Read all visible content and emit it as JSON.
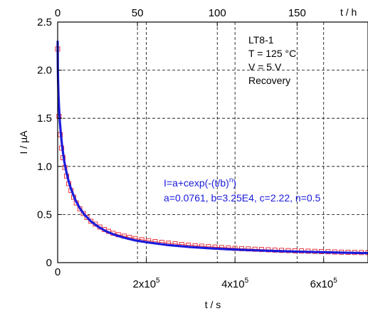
{
  "chart_data": {
    "type": "scatter",
    "xlabel": "t / s",
    "ylabel": "I / µA",
    "top_xlabel": "t / h",
    "xlim": [
      0,
      700000
    ],
    "ylim": [
      0,
      2.5
    ],
    "top_xlim_hours": [
      0,
      194.44
    ],
    "grid": true,
    "x_ticks": [
      {
        "value": 0,
        "label": "0"
      },
      {
        "value": 200000,
        "label": "2x10",
        "sup": "5"
      },
      {
        "value": 400000,
        "label": "4x10",
        "sup": "5"
      },
      {
        "value": 600000,
        "label": "6x10",
        "sup": "5"
      }
    ],
    "y_ticks": [
      {
        "value": 0,
        "label": "0"
      },
      {
        "value": 0.5,
        "label": "0.5"
      },
      {
        "value": 1.0,
        "label": "1.0"
      },
      {
        "value": 1.5,
        "label": "1.5"
      },
      {
        "value": 2.0,
        "label": "2.0"
      },
      {
        "value": 2.5,
        "label": "2.5"
      }
    ],
    "top_ticks": [
      {
        "value": 0,
        "label": "0"
      },
      {
        "value": 50,
        "label": "50"
      },
      {
        "value": 100,
        "label": "100"
      },
      {
        "value": 150,
        "label": "150"
      }
    ],
    "annotation_lines": [
      "LT8-1",
      "T = 125 °C",
      "V = 5 V",
      "Recovery"
    ],
    "fit_equation": {
      "text": "I=a+cexp(-(t/b)",
      "sup": "n",
      "close": ")"
    },
    "fit_params_text": "a=0.0761, b=3.25E4, c=2.22, n=0.5",
    "fit_params": {
      "a": 0.0761,
      "b": 32500,
      "c": 2.22,
      "n": 0.5
    },
    "series": [
      {
        "marker": "square",
        "color": "#e8202a",
        "x": [
          0,
          3000,
          6000,
          9000,
          12000,
          16000,
          20000,
          25000,
          30000,
          36000,
          42000,
          50000,
          58000,
          66000,
          75000,
          85000,
          95000,
          105000,
          115000,
          125000,
          137000,
          150000,
          162000,
          175000,
          190000,
          205000,
          220000,
          235000,
          250000,
          265000,
          280000,
          295000,
          310000,
          325000,
          340000,
          355000,
          370000,
          385000,
          400000,
          415000,
          430000,
          445000,
          460000,
          475000,
          490000,
          505000,
          520000,
          535000,
          550000,
          565000,
          580000,
          595000,
          610000,
          625000,
          640000,
          655000,
          670000,
          685000,
          700000
        ],
        "y": [
          2.22,
          1.52,
          1.33,
          1.19,
          1.09,
          0.99,
          0.9,
          0.82,
          0.75,
          0.68,
          0.62,
          0.56,
          0.51,
          0.47,
          0.43,
          0.4,
          0.37,
          0.345,
          0.325,
          0.305,
          0.29,
          0.275,
          0.262,
          0.25,
          0.238,
          0.228,
          0.218,
          0.21,
          0.202,
          0.195,
          0.188,
          0.182,
          0.176,
          0.171,
          0.166,
          0.161,
          0.157,
          0.153,
          0.149,
          0.145,
          0.142,
          0.139,
          0.136,
          0.133,
          0.13,
          0.127,
          0.125,
          0.123,
          0.121,
          0.119,
          0.117,
          0.115,
          0.113,
          0.111,
          0.109,
          0.107,
          0.106,
          0.105,
          0.104
        ]
      }
    ],
    "fit_curve": {
      "color": "#1a1adc",
      "x": [
        0,
        500,
        1000,
        2000,
        3000,
        5000,
        7500,
        10000,
        15000,
        20000,
        25000,
        30000,
        40000,
        50000,
        60000,
        75000,
        90000,
        110000,
        130000,
        150000,
        175000,
        200000,
        250000,
        300000,
        350000,
        400000,
        450000,
        500000,
        550000,
        600000,
        650000,
        700000
      ],
      "y": [
        2.296,
        2.005,
        1.888,
        1.73,
        1.618,
        1.462,
        1.324,
        1.215,
        1.052,
        0.934,
        0.842,
        0.767,
        0.651,
        0.566,
        0.501,
        0.429,
        0.377,
        0.324,
        0.286,
        0.259,
        0.231,
        0.212,
        0.182,
        0.162,
        0.147,
        0.136,
        0.127,
        0.119,
        0.113,
        0.108,
        0.103,
        0.099
      ]
    }
  }
}
